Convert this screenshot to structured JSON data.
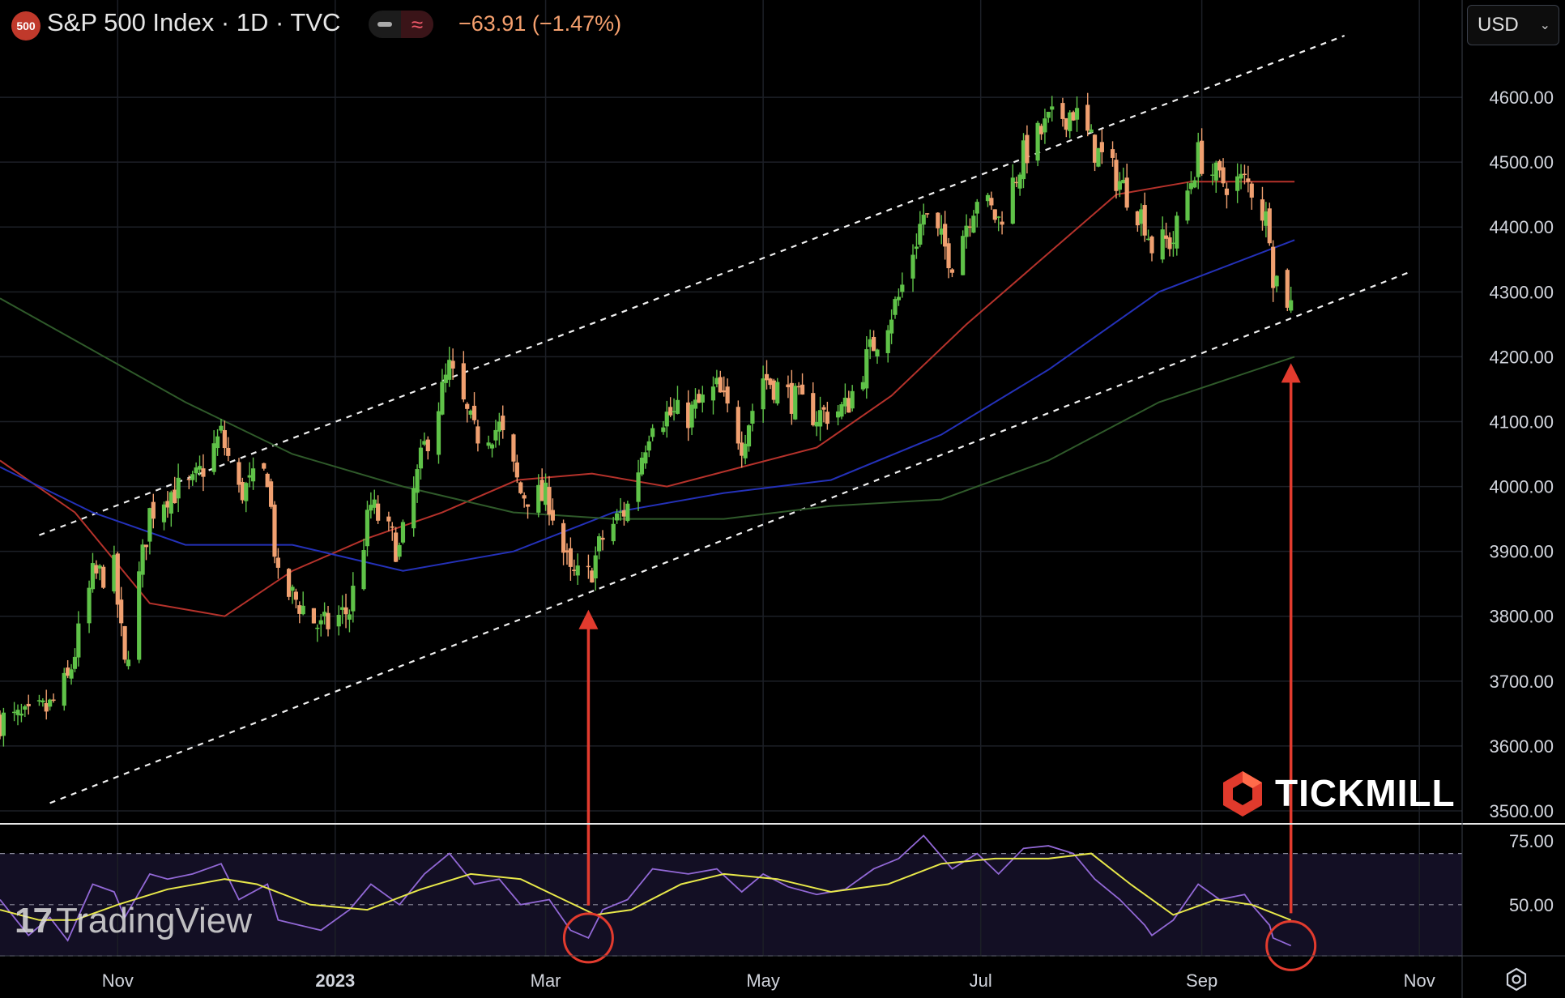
{
  "header": {
    "badge": "500",
    "title": "S&P 500 Index · 1D · TVC",
    "change": "−63.91 (−1.47%)",
    "currency": "USD"
  },
  "watermarks": {
    "tradingview": "TradingView",
    "broker": "TICKMILL"
  },
  "icons": [
    "chevron-down-icon",
    "gear-icon",
    "tradingview-logo-icon",
    "tickmill-logo-icon"
  ],
  "colors": {
    "up": "#5fc248",
    "down": "#f0a070",
    "ma50": "#b5322b",
    "ma100": "#2431b8",
    "ma200": "#2f5a2a",
    "rsi": "#9268d6",
    "rsi_ma": "#e8e84a",
    "annotation": "#e23b2e"
  },
  "chart_data": [
    {
      "type": "candlestick",
      "title": "",
      "ylabel": "",
      "ylim": [
        3480,
        4700
      ],
      "y_ticks": [
        3500,
        3600,
        3700,
        3800,
        3900,
        4000,
        4100,
        4200,
        4300,
        4400,
        4500,
        4600
      ],
      "y_tick_labels": [
        "3500.00",
        "3600.00",
        "3700.00",
        "3800.00",
        "3900.00",
        "4000.00",
        "4100.00",
        "4200.00",
        "4300.00",
        "4400.00",
        "4500.00",
        "4600.00"
      ],
      "x_ticks": [
        "2022-11-01",
        "2023-01-01",
        "2023-03-01",
        "2023-05-01",
        "2023-07-01",
        "2023-09-01",
        "2023-11-01"
      ],
      "x_tick_labels": [
        "Nov",
        "2023",
        "Mar",
        "May",
        "Jul",
        "Sep",
        "Nov"
      ],
      "x_range": [
        "2022-09-29",
        "2023-11-13"
      ],
      "close_series": [
        [
          "2022-09-29",
          3640
        ],
        [
          "2022-10-07",
          3640
        ],
        [
          "2022-10-13",
          3660
        ],
        [
          "2022-10-18",
          3700
        ],
        [
          "2022-10-25",
          3860
        ],
        [
          "2022-10-31",
          3870
        ],
        [
          "2022-11-03",
          3720
        ],
        [
          "2022-11-10",
          3960
        ],
        [
          "2022-11-15",
          3990
        ],
        [
          "2022-11-22",
          4000
        ],
        [
          "2022-11-30",
          4080
        ],
        [
          "2022-12-05",
          3990
        ],
        [
          "2022-12-13",
          4020
        ],
        [
          "2022-12-16",
          3850
        ],
        [
          "2022-12-22",
          3820
        ],
        [
          "2022-12-28",
          3780
        ],
        [
          "2023-01-05",
          3810
        ],
        [
          "2023-01-11",
          3970
        ],
        [
          "2023-01-19",
          3900
        ],
        [
          "2023-01-26",
          4060
        ],
        [
          "2023-02-02",
          4180
        ],
        [
          "2023-02-09",
          4080
        ],
        [
          "2023-02-16",
          4090
        ],
        [
          "2023-02-22",
          3990
        ],
        [
          "2023-03-02",
          3980
        ],
        [
          "2023-03-08",
          3860
        ],
        [
          "2023-03-13",
          3860
        ],
        [
          "2023-03-17",
          3920
        ],
        [
          "2023-03-24",
          3970
        ],
        [
          "2023-03-31",
          4110
        ],
        [
          "2023-04-10",
          4110
        ],
        [
          "2023-04-18",
          4150
        ],
        [
          "2023-04-25",
          4070
        ],
        [
          "2023-05-01",
          4170
        ],
        [
          "2023-05-08",
          4140
        ],
        [
          "2023-05-16",
          4110
        ],
        [
          "2023-05-24",
          4120
        ],
        [
          "2023-06-01",
          4220
        ],
        [
          "2023-06-08",
          4290
        ],
        [
          "2023-06-15",
          4420
        ],
        [
          "2023-06-23",
          4350
        ],
        [
          "2023-06-30",
          4450
        ],
        [
          "2023-07-06",
          4410
        ],
        [
          "2023-07-13",
          4510
        ],
        [
          "2023-07-20",
          4560
        ],
        [
          "2023-07-27",
          4580
        ],
        [
          "2023-08-02",
          4520
        ],
        [
          "2023-08-09",
          4470
        ],
        [
          "2023-08-16",
          4410
        ],
        [
          "2023-08-18",
          4370
        ],
        [
          "2023-08-24",
          4380
        ],
        [
          "2023-08-31",
          4510
        ],
        [
          "2023-09-06",
          4470
        ],
        [
          "2023-09-13",
          4470
        ],
        [
          "2023-09-15",
          4460
        ],
        [
          "2023-09-20",
          4400
        ],
        [
          "2023-09-21",
          4330
        ],
        [
          "2023-09-26",
          4280
        ]
      ],
      "moving_averages": [
        {
          "period": 50,
          "color": "#b5322b",
          "values": [
            [
              "2022-09-29",
              4040
            ],
            [
              "2022-10-20",
              3960
            ],
            [
              "2022-11-10",
              3820
            ],
            [
              "2022-12-01",
              3800
            ],
            [
              "2022-12-20",
              3870
            ],
            [
              "2023-01-10",
              3920
            ],
            [
              "2023-01-31",
              3960
            ],
            [
              "2023-02-21",
              4010
            ],
            [
              "2023-03-14",
              4020
            ],
            [
              "2023-04-04",
              4000
            ],
            [
              "2023-04-25",
              4030
            ],
            [
              "2023-05-16",
              4060
            ],
            [
              "2023-06-06",
              4140
            ],
            [
              "2023-06-27",
              4250
            ],
            [
              "2023-07-18",
              4350
            ],
            [
              "2023-08-08",
              4450
            ],
            [
              "2023-08-29",
              4470
            ],
            [
              "2023-09-27",
              4470
            ]
          ]
        },
        {
          "period": 100,
          "color": "#2431b8",
          "values": [
            [
              "2022-09-29",
              4030
            ],
            [
              "2022-10-25",
              3960
            ],
            [
              "2022-11-20",
              3910
            ],
            [
              "2022-12-20",
              3910
            ],
            [
              "2023-01-20",
              3870
            ],
            [
              "2023-02-20",
              3900
            ],
            [
              "2023-03-20",
              3960
            ],
            [
              "2023-04-20",
              3990
            ],
            [
              "2023-05-20",
              4010
            ],
            [
              "2023-06-20",
              4080
            ],
            [
              "2023-07-20",
              4180
            ],
            [
              "2023-08-20",
              4300
            ],
            [
              "2023-09-27",
              4380
            ]
          ]
        },
        {
          "period": 200,
          "color": "#2f5a2a",
          "values": [
            [
              "2022-09-29",
              4290
            ],
            [
              "2022-10-25",
              4210
            ],
            [
              "2022-11-20",
              4130
            ],
            [
              "2022-12-20",
              4050
            ],
            [
              "2023-01-20",
              4000
            ],
            [
              "2023-02-20",
              3960
            ],
            [
              "2023-03-20",
              3950
            ],
            [
              "2023-04-20",
              3950
            ],
            [
              "2023-05-20",
              3970
            ],
            [
              "2023-06-20",
              3980
            ],
            [
              "2023-07-20",
              4040
            ],
            [
              "2023-08-20",
              4130
            ],
            [
              "2023-09-27",
              4200
            ]
          ]
        }
      ],
      "trend_channel": {
        "upper": [
          [
            "2022-10-10",
            3925
          ],
          [
            "2023-10-11",
            4695
          ]
        ],
        "lower": [
          [
            "2022-10-13",
            3512
          ],
          [
            "2023-10-29",
            4330
          ]
        ]
      },
      "annotations": [
        {
          "type": "arrow",
          "x": "2023-03-13",
          "y_from": "rsi-low",
          "y_to": 3810
        },
        {
          "type": "arrow",
          "x": "2023-09-26",
          "y_from": "rsi-low",
          "y_to": 4190
        }
      ]
    },
    {
      "type": "line",
      "title": "",
      "ylabel": "",
      "ylim": [
        30,
        80
      ],
      "y_ticks": [
        50,
        75
      ],
      "y_tick_labels": [
        "50.00",
        "75.00"
      ],
      "levels": [
        70,
        50,
        30
      ],
      "series": [
        {
          "color": "#9268d6",
          "values": [
            [
              "2022-09-29",
              52
            ],
            [
              "2022-10-07",
              38
            ],
            [
              "2022-10-13",
              45
            ],
            [
              "2022-10-18",
              36
            ],
            [
              "2022-10-25",
              58
            ],
            [
              "2022-10-31",
              55
            ],
            [
              "2022-11-03",
              45
            ],
            [
              "2022-11-10",
              62
            ],
            [
              "2022-11-15",
              60
            ],
            [
              "2022-11-22",
              62
            ],
            [
              "2022-11-30",
              66
            ],
            [
              "2022-12-05",
              52
            ],
            [
              "2022-12-13",
              58
            ],
            [
              "2022-12-16",
              44
            ],
            [
              "2022-12-22",
              42
            ],
            [
              "2022-12-28",
              40
            ],
            [
              "2023-01-05",
              48
            ],
            [
              "2023-01-11",
              58
            ],
            [
              "2023-01-19",
              50
            ],
            [
              "2023-01-26",
              62
            ],
            [
              "2023-02-02",
              70
            ],
            [
              "2023-02-09",
              58
            ],
            [
              "2023-02-16",
              60
            ],
            [
              "2023-02-22",
              50
            ],
            [
              "2023-03-02",
              52
            ],
            [
              "2023-03-08",
              40
            ],
            [
              "2023-03-13",
              37
            ],
            [
              "2023-03-17",
              48
            ],
            [
              "2023-03-24",
              52
            ],
            [
              "2023-03-31",
              64
            ],
            [
              "2023-04-10",
              62
            ],
            [
              "2023-04-18",
              64
            ],
            [
              "2023-04-25",
              55
            ],
            [
              "2023-05-01",
              62
            ],
            [
              "2023-05-08",
              57
            ],
            [
              "2023-05-16",
              54
            ],
            [
              "2023-05-24",
              56
            ],
            [
              "2023-06-01",
              64
            ],
            [
              "2023-06-08",
              68
            ],
            [
              "2023-06-15",
              77
            ],
            [
              "2023-06-23",
              64
            ],
            [
              "2023-06-30",
              70
            ],
            [
              "2023-07-06",
              62
            ],
            [
              "2023-07-13",
              72
            ],
            [
              "2023-07-20",
              73
            ],
            [
              "2023-07-27",
              70
            ],
            [
              "2023-08-02",
              60
            ],
            [
              "2023-08-09",
              52
            ],
            [
              "2023-08-16",
              42
            ],
            [
              "2023-08-18",
              38
            ],
            [
              "2023-08-24",
              44
            ],
            [
              "2023-08-31",
              58
            ],
            [
              "2023-09-06",
              52
            ],
            [
              "2023-09-13",
              54
            ],
            [
              "2023-09-15",
              50
            ],
            [
              "2023-09-20",
              42
            ],
            [
              "2023-09-21",
              37
            ],
            [
              "2023-09-26",
              34
            ]
          ]
        },
        {
          "color": "#e8e84a",
          "values": [
            [
              "2022-09-29",
              48
            ],
            [
              "2022-10-10",
              44
            ],
            [
              "2022-10-20",
              44
            ],
            [
              "2022-11-01",
              50
            ],
            [
              "2022-11-15",
              56
            ],
            [
              "2022-12-01",
              60
            ],
            [
              "2022-12-10",
              58
            ],
            [
              "2022-12-25",
              50
            ],
            [
              "2023-01-10",
              48
            ],
            [
              "2023-01-25",
              56
            ],
            [
              "2023-02-08",
              62
            ],
            [
              "2023-02-22",
              60
            ],
            [
              "2023-03-06",
              52
            ],
            [
              "2023-03-15",
              46
            ],
            [
              "2023-03-25",
              48
            ],
            [
              "2023-04-08",
              58
            ],
            [
              "2023-04-20",
              62
            ],
            [
              "2023-05-05",
              60
            ],
            [
              "2023-05-20",
              55
            ],
            [
              "2023-06-05",
              58
            ],
            [
              "2023-06-20",
              66
            ],
            [
              "2023-07-05",
              68
            ],
            [
              "2023-07-20",
              68
            ],
            [
              "2023-08-01",
              70
            ],
            [
              "2023-08-12",
              58
            ],
            [
              "2023-08-24",
              46
            ],
            [
              "2023-09-05",
              52
            ],
            [
              "2023-09-15",
              50
            ],
            [
              "2023-09-26",
              44
            ]
          ]
        }
      ],
      "annotations": [
        {
          "type": "circle",
          "x": "2023-03-13",
          "y": 37
        },
        {
          "type": "circle",
          "x": "2023-09-26",
          "y": 34
        }
      ]
    }
  ]
}
